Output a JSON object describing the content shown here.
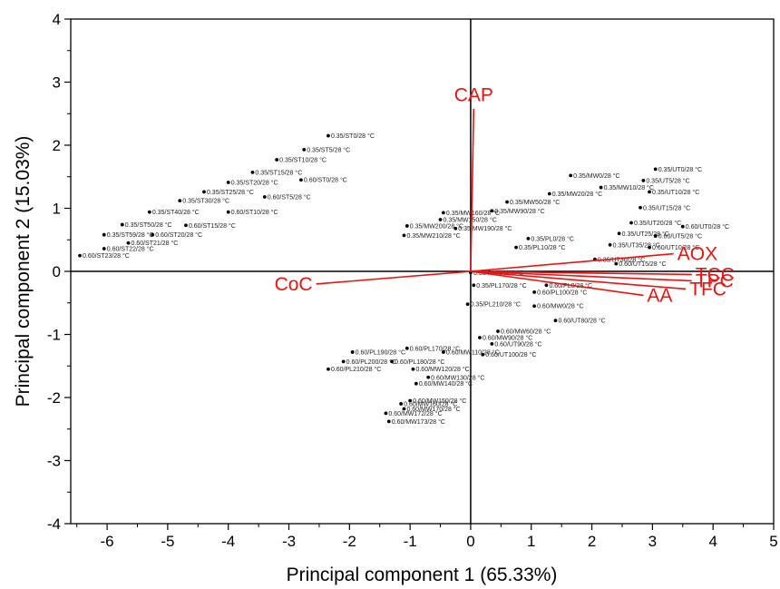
{
  "chart_data": {
    "type": "scatter",
    "subtype": "pca-biplot",
    "xlabel": "Principal component 1 (65.33%)",
    "ylabel": "Principal component 2 (15.03%)",
    "xlim": [
      -6.6,
      5
    ],
    "ylim": [
      -4,
      4
    ],
    "x_ticks": [
      -6,
      -5,
      -4,
      -3,
      -2,
      -1,
      0,
      1,
      2,
      3,
      4,
      5
    ],
    "y_ticks": [
      -4,
      -3,
      -2,
      -1,
      0,
      1,
      2,
      3,
      4
    ],
    "grid": false,
    "colors": {
      "points": "#000000",
      "loadings": "#ee1111",
      "axes": "#000000"
    },
    "loadings": [
      {
        "name": "CAP",
        "x": 0.05,
        "y": 2.58
      },
      {
        "name": "AOX",
        "x": 3.35,
        "y": 0.28
      },
      {
        "name": "TCC",
        "x": 3.65,
        "y": -0.05
      },
      {
        "name": "TPC",
        "x": 3.65,
        "y": -0.15
      },
      {
        "name": "TFC",
        "x": 3.55,
        "y": -0.28
      },
      {
        "name": "AA",
        "x": 2.85,
        "y": -0.38
      },
      {
        "name": "CoC",
        "x": -2.55,
        "y": -0.2
      }
    ],
    "points": [
      {
        "label": "0.35/ST0/28 °C",
        "x": -2.35,
        "y": 2.15
      },
      {
        "label": "0.35/ST5/28 °C",
        "x": -2.75,
        "y": 1.93
      },
      {
        "label": "0.35/ST10/28 °C",
        "x": -3.2,
        "y": 1.77
      },
      {
        "label": "0.35/ST15/28 °C",
        "x": -3.6,
        "y": 1.57
      },
      {
        "label": "0.60/ST0/28 °C",
        "x": -2.8,
        "y": 1.45
      },
      {
        "label": "0.35/ST20/28 °C",
        "x": -4.0,
        "y": 1.41
      },
      {
        "label": "0.35/ST25/28 °C",
        "x": -4.4,
        "y": 1.26
      },
      {
        "label": "0.60/ST5/28 °C",
        "x": -3.4,
        "y": 1.18
      },
      {
        "label": "0.35/ST30/28 °C",
        "x": -4.8,
        "y": 1.12
      },
      {
        "label": "0.35/ST40/28 °C",
        "x": -5.3,
        "y": 0.94
      },
      {
        "label": "0.60/ST10/28 °C",
        "x": -4.0,
        "y": 0.94
      },
      {
        "label": "0.35/ST50/28 °C",
        "x": -5.75,
        "y": 0.74
      },
      {
        "label": "0.60/ST15/28 °C",
        "x": -4.7,
        "y": 0.73
      },
      {
        "label": "0.35/ST59/28 °C",
        "x": -6.05,
        "y": 0.58
      },
      {
        "label": "0.60/ST20/28 °C",
        "x": -5.25,
        "y": 0.58
      },
      {
        "label": "0.60/ST21/28 °C",
        "x": -5.65,
        "y": 0.45
      },
      {
        "label": "0.60/ST22/28 °C",
        "x": -6.05,
        "y": 0.36
      },
      {
        "label": "0.60/ST23/28 °C",
        "x": -6.45,
        "y": 0.25
      },
      {
        "label": "0.35/MW0/28 °C",
        "x": 1.65,
        "y": 1.52
      },
      {
        "label": "0.35/MW10/28 °C",
        "x": 2.15,
        "y": 1.33
      },
      {
        "label": "0.35/MW20/28 °C",
        "x": 1.3,
        "y": 1.23
      },
      {
        "label": "0.35/MW50/28 °C",
        "x": 0.6,
        "y": 1.1
      },
      {
        "label": "0.35/MW90/28 °C",
        "x": 0.35,
        "y": 0.96
      },
      {
        "label": "0.35/MW160/28 °C",
        "x": -0.45,
        "y": 0.93
      },
      {
        "label": "0.35/MW150/28 °C",
        "x": -0.5,
        "y": 0.82
      },
      {
        "label": "0.35/MW200/28 °C",
        "x": -1.05,
        "y": 0.72
      },
      {
        "label": "0.35/MW210/28 °C",
        "x": -1.1,
        "y": 0.57
      },
      {
        "label": "0.35/MW190/28 °C",
        "x": -0.25,
        "y": 0.68
      },
      {
        "label": "0.35/UT0/28 °C",
        "x": 3.05,
        "y": 1.62
      },
      {
        "label": "0.35/UT5/28 °C",
        "x": 2.85,
        "y": 1.44
      },
      {
        "label": "0.35/UT10/28 °C",
        "x": 2.95,
        "y": 1.26
      },
      {
        "label": "0.35/UT15/28 °C",
        "x": 2.8,
        "y": 1.01
      },
      {
        "label": "0.35/UT20/28 °C",
        "x": 2.65,
        "y": 0.77
      },
      {
        "label": "0.60/UT0/28 °C",
        "x": 3.5,
        "y": 0.71
      },
      {
        "label": "0.35/UT25/28 °C",
        "x": 2.45,
        "y": 0.6
      },
      {
        "label": "0.60/UT5/28 °C",
        "x": 3.05,
        "y": 0.56
      },
      {
        "label": "0.60/UT10/28 °C",
        "x": 2.95,
        "y": 0.38
      },
      {
        "label": "0.35/UT30/28 °C",
        "x": 2.05,
        "y": 0.19
      },
      {
        "label": "0.60/UT15/28 °C",
        "x": 2.4,
        "y": 0.12
      },
      {
        "label": "0.60/PL0/28 °C",
        "x": 1.25,
        "y": -0.22
      },
      {
        "label": "0.60/PL190/28 °C",
        "x": -1.95,
        "y": -1.28
      },
      {
        "label": "0.60/PL200/28 °C",
        "x": -2.1,
        "y": -1.43
      },
      {
        "label": "0.60/PL210/28 °C",
        "x": -2.35,
        "y": -1.55
      },
      {
        "label": "0.60/PL180/28 °C",
        "x": -1.3,
        "y": -1.43
      },
      {
        "label": "0.60/PL170/28 °C",
        "x": -1.05,
        "y": -1.22
      },
      {
        "label": "0.60/MW120/28 °C",
        "x": -0.95,
        "y": -1.55
      },
      {
        "label": "0.60/MW130/28 °C",
        "x": -0.7,
        "y": -1.68
      },
      {
        "label": "0.60/MW140/28 °C",
        "x": -0.9,
        "y": -1.78
      },
      {
        "label": "0.60/MW150/28 °C",
        "x": -1.0,
        "y": -2.05
      },
      {
        "label": "0.60/MW160/28 °C",
        "x": -1.15,
        "y": -2.1
      },
      {
        "label": "0.60/MW170/28 °C",
        "x": -1.1,
        "y": -2.18
      },
      {
        "label": "0.60/MW172/28 °C",
        "x": -1.4,
        "y": -2.25
      },
      {
        "label": "0.60/MW173/28 °C",
        "x": -1.35,
        "y": -2.38
      },
      {
        "label": "0.60/MW110/28 °C",
        "x": -0.45,
        "y": -1.28
      },
      {
        "label": "0.60/MW90/28 °C",
        "x": 0.15,
        "y": -1.05
      },
      {
        "label": "0.60/MW60/28 °C",
        "x": 0.45,
        "y": -0.95
      },
      {
        "label": "0.60/MW0/28 °C",
        "x": 1.05,
        "y": -0.55
      },
      {
        "label": "0.60/UT80/28 °C",
        "x": 1.4,
        "y": -0.78
      },
      {
        "label": "0.60/UT90/28 °C",
        "x": 0.35,
        "y": -1.15
      },
      {
        "label": "0.60/UT100/28 °C",
        "x": 0.2,
        "y": -1.32
      },
      {
        "label": "0.35/PL0/28 °C",
        "x": 0.95,
        "y": 0.52
      },
      {
        "label": "0.35/PL10/28 °C",
        "x": 0.75,
        "y": 0.38
      },
      {
        "label": "0.35/PL130/28 °C",
        "x": 0.0,
        "y": -0.02
      },
      {
        "label": "0.35/PL170/28 °C",
        "x": 0.05,
        "y": -0.22
      },
      {
        "label": "0.35/PL210/28 °C",
        "x": -0.05,
        "y": -0.52
      },
      {
        "label": "0.60/PL100/28 °C",
        "x": 1.05,
        "y": -0.33
      },
      {
        "label": "0.35/UT35/28 °C",
        "x": 2.3,
        "y": 0.42
      }
    ]
  }
}
